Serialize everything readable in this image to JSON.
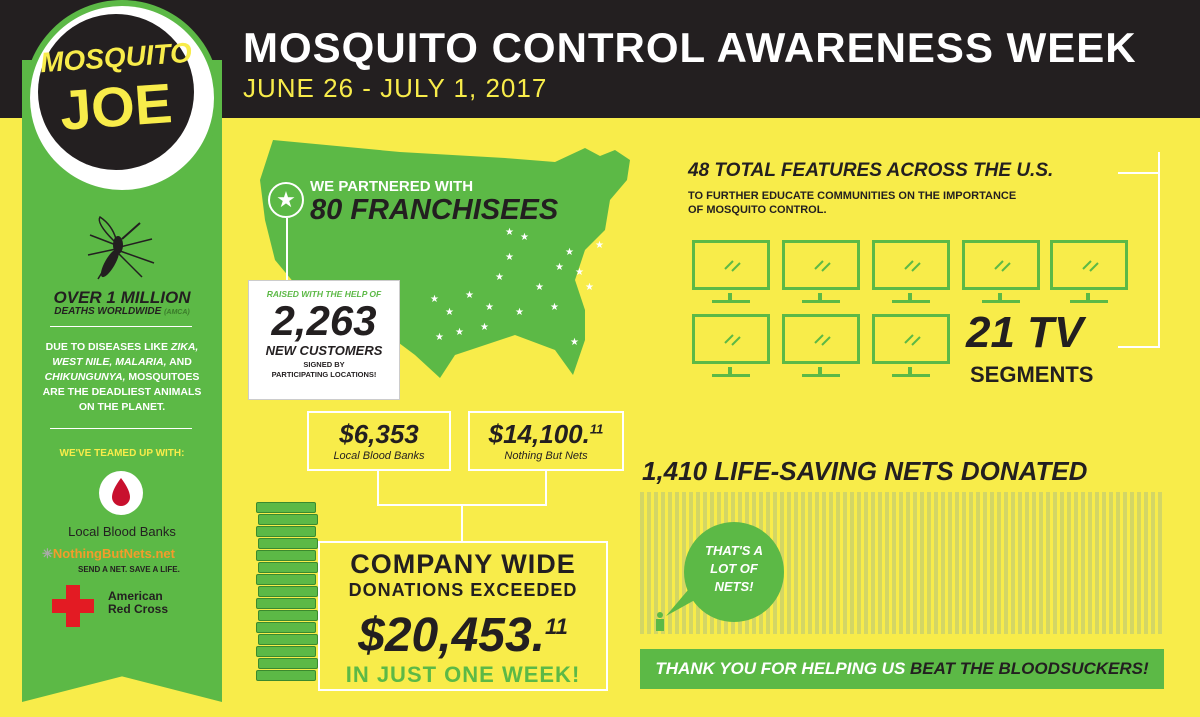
{
  "header": {
    "title": "MOSQUITO CONTROL AWARENESS WEEK",
    "dates": "JUNE 26 - JULY 1, 2017"
  },
  "logo": {
    "line1": "MOSQUITO",
    "line2": "JOE"
  },
  "sidebar": {
    "deaths_headline": "OVER 1 MILLION",
    "deaths_sub": "DEATHS WORLDWIDE",
    "deaths_source": "(AMCA)",
    "diseases_pre": "DUE TO DISEASES LIKE",
    "disease_1": "ZIKA,",
    "disease_2": "WEST NILE,",
    "disease_3": "MALARIA,",
    "and": "AND",
    "disease_4": "CHIKUNGUNYA,",
    "diseases_post_1": "MOSQUITOES",
    "diseases_post_2": "ARE THE DEADLIEST ANIMALS",
    "diseases_post_3": "ON THE PLANET.",
    "teamed": "WE'VE TEAMED UP WITH:",
    "partner_1": "Local Blood Banks",
    "partner_2": "NothingButNets.net",
    "partner_2_tag": "SEND A NET. SAVE A LIFE.",
    "partner_3_line1": "American",
    "partner_3_line2": "Red Cross"
  },
  "franchise": {
    "pre": "WE PARTNERED WITH",
    "headline": "80 FRANCHISEES"
  },
  "customers": {
    "pre": "RAISED WITH THE HELP OF",
    "value": "2,263",
    "label": "NEW CUSTOMERS",
    "post_1": "SIGNED BY",
    "post_2": "PARTICIPATING LOCATIONS!"
  },
  "features": {
    "headline": "48 TOTAL FEATURES ACROSS THE U.S.",
    "sub_1": "TO FURTHER EDUCATE COMMUNITIES ON THE IMPORTANCE",
    "sub_2": "OF MOSQUITO CONTROL.",
    "tv_value": "21 TV",
    "tv_label": "SEGMENTS"
  },
  "donations": {
    "blood_value": "$6,353",
    "blood_label": "Local Blood Banks",
    "nets_value": "$14,100.",
    "nets_cents": "11",
    "nets_label": "Nothing But Nets",
    "company_1": "COMPANY WIDE",
    "company_2": "DONATIONS EXCEEDED",
    "total_value": "$20,453.",
    "total_cents": "11",
    "week": "IN JUST ONE WEEK!"
  },
  "nets": {
    "headline": "1,410 LIFE-SAVING NETS DONATED",
    "bubble_1": "THAT'S A",
    "bubble_2": "LOT OF",
    "bubble_3": "NETS!"
  },
  "thanks": {
    "pre": "THANK YOU FOR HELPING US",
    "emph": "BEAT THE BLOODSUCKERS!"
  },
  "colors": {
    "yellow": "#f8ec4a",
    "green": "#5cb946",
    "black": "#231f20"
  }
}
